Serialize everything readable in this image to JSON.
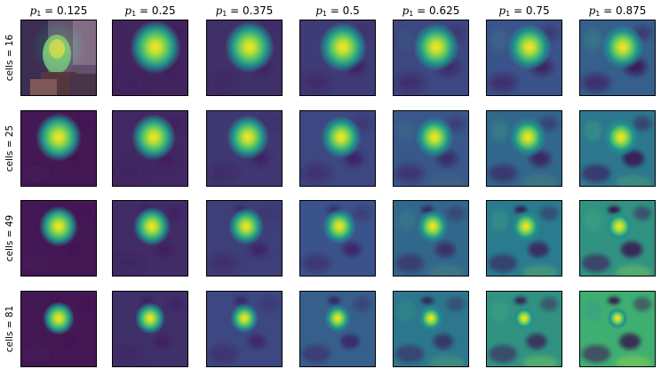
{
  "figure": {
    "colormap": "viridis",
    "columns": [
      {
        "symbol": "p",
        "subscript": "1",
        "value": "= 0.125"
      },
      {
        "symbol": "p",
        "subscript": "1",
        "value": "= 0.25"
      },
      {
        "symbol": "p",
        "subscript": "1",
        "value": "= 0.375"
      },
      {
        "symbol": "p",
        "subscript": "1",
        "value": "= 0.5"
      },
      {
        "symbol": "p",
        "subscript": "1",
        "value": "= 0.625"
      },
      {
        "symbol": "p",
        "subscript": "1",
        "value": "= 0.75"
      },
      {
        "symbol": "p",
        "subscript": "1",
        "value": "= 0.875"
      }
    ],
    "rows": [
      {
        "label": "cells = 16"
      },
      {
        "label": "cells = 25"
      },
      {
        "label": "cells = 49"
      },
      {
        "label": "cells = 81"
      }
    ],
    "first_panel_overlay": "photo-overlay"
  }
}
